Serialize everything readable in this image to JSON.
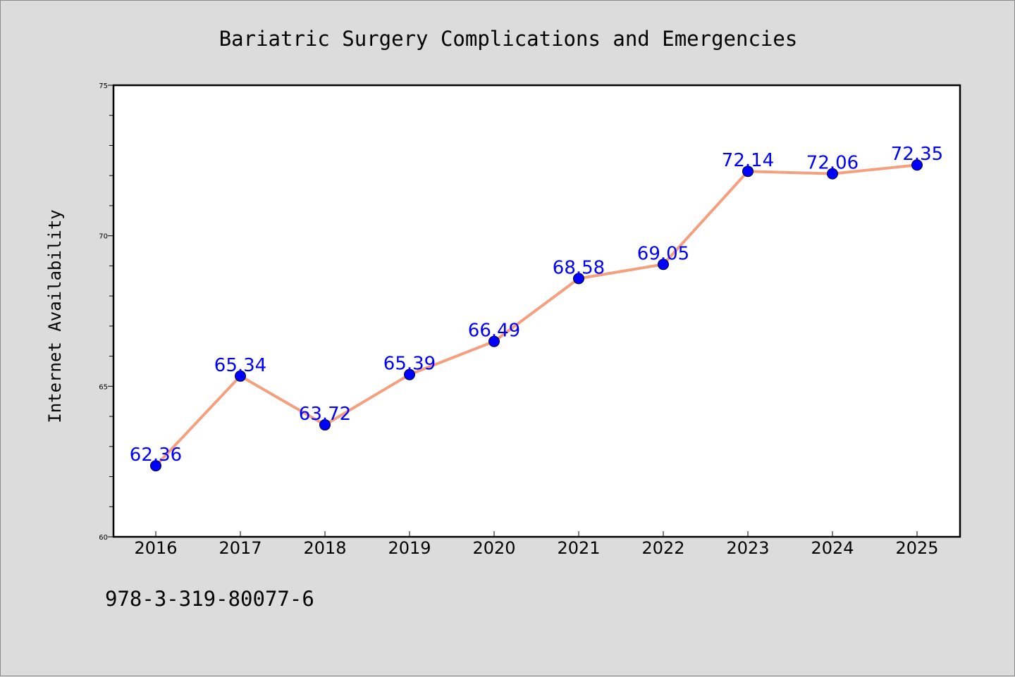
{
  "chart_data": {
    "type": "line",
    "title": "Bariatric Surgery Complications and Emergencies",
    "xlabel": "",
    "ylabel": "Internet Availability",
    "categories": [
      "2016",
      "2017",
      "2018",
      "2019",
      "2020",
      "2021",
      "2022",
      "2023",
      "2024",
      "2025"
    ],
    "values": [
      62.36,
      65.34,
      63.72,
      65.39,
      66.49,
      68.58,
      69.05,
      72.14,
      72.06,
      72.35
    ],
    "data_labels": [
      "62.36",
      "65.34",
      "63.72",
      "65.39",
      "66.49",
      "68.58",
      "69.05",
      "72.14",
      "72.06",
      "72.35"
    ],
    "ylim": [
      60,
      75
    ],
    "yticks": [
      "60",
      "65",
      "70",
      "75"
    ],
    "grid": false,
    "legend": "none",
    "line_color": "#f4a07e",
    "marker_color": "#0000ff",
    "label_color": "#0000ff",
    "background": "#dcdcdc",
    "plot_background": "#ffffff"
  },
  "footnote": "978-3-319-80077-6"
}
